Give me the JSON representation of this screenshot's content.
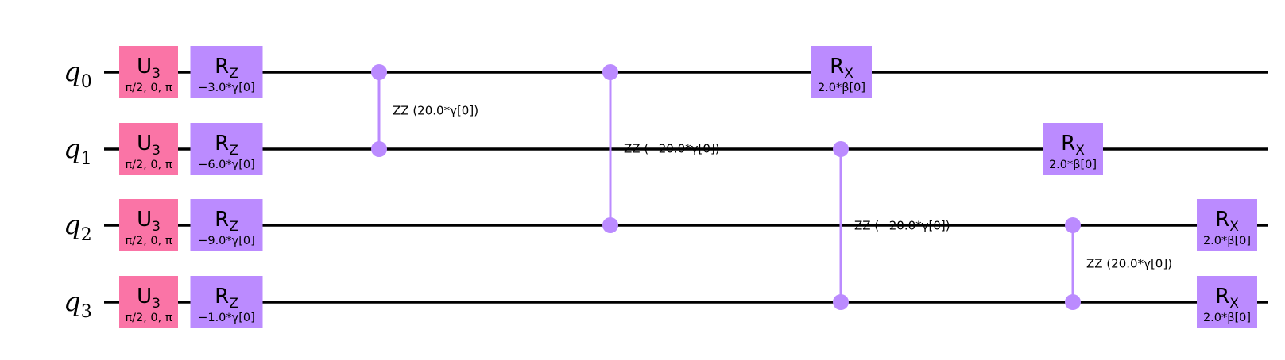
{
  "colors": {
    "u3_gate": "#FA74A6",
    "rotation_gate": "#BB8BFF",
    "wire": "#000000",
    "label": "#000000"
  },
  "qubits": [
    {
      "name": "q",
      "index": "0"
    },
    {
      "name": "q",
      "index": "1"
    },
    {
      "name": "q",
      "index": "2"
    },
    {
      "name": "q",
      "index": "3"
    }
  ],
  "gates": [
    {
      "type": "U",
      "sub": "3",
      "param": "π/2, 0, π",
      "qubit": 0,
      "column": 0,
      "color": "u3"
    },
    {
      "type": "U",
      "sub": "3",
      "param": "π/2, 0, π",
      "qubit": 1,
      "column": 0,
      "color": "u3"
    },
    {
      "type": "U",
      "sub": "3",
      "param": "π/2, 0, π",
      "qubit": 2,
      "column": 0,
      "color": "u3"
    },
    {
      "type": "U",
      "sub": "3",
      "param": "π/2, 0, π",
      "qubit": 3,
      "column": 0,
      "color": "u3"
    },
    {
      "type": "R",
      "sub": "Z",
      "param": "−3.0*γ[0]",
      "qubit": 0,
      "column": 1,
      "color": "rot"
    },
    {
      "type": "R",
      "sub": "Z",
      "param": "−6.0*γ[0]",
      "qubit": 1,
      "column": 1,
      "color": "rot"
    },
    {
      "type": "R",
      "sub": "Z",
      "param": "−9.0*γ[0]",
      "qubit": 2,
      "column": 1,
      "color": "rot"
    },
    {
      "type": "R",
      "sub": "Z",
      "param": "−1.0*γ[0]",
      "qubit": 3,
      "column": 1,
      "color": "rot"
    },
    {
      "type": "R",
      "sub": "X",
      "param": "2.0*β[0]",
      "qubit": 0,
      "column": 5,
      "color": "rot"
    },
    {
      "type": "R",
      "sub": "X",
      "param": "2.0*β[0]",
      "qubit": 1,
      "column": 7,
      "color": "rot"
    },
    {
      "type": "R",
      "sub": "X",
      "param": "2.0*β[0]",
      "qubit": 2,
      "column": 8,
      "color": "rot"
    },
    {
      "type": "R",
      "sub": "X",
      "param": "2.0*β[0]",
      "qubit": 3,
      "column": 8,
      "color": "rot"
    }
  ],
  "zz_gates": [
    {
      "label": "ZZ (20.0*γ[0])",
      "qubits": [
        0,
        1
      ],
      "column": 2
    },
    {
      "label": "ZZ (−20.0*γ[0])",
      "qubits": [
        0,
        2
      ],
      "column": 3
    },
    {
      "label": "ZZ (−20.0*γ[0])",
      "qubits": [
        1,
        3
      ],
      "column": 4
    },
    {
      "label": "ZZ (20.0*γ[0])",
      "qubits": [
        2,
        3
      ],
      "column": 6
    }
  ]
}
